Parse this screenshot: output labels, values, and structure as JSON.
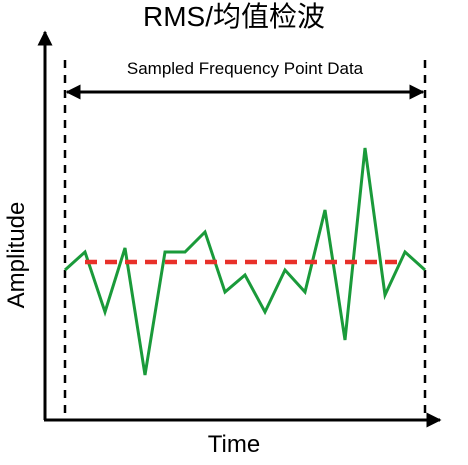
{
  "chart_data": {
    "type": "line",
    "title": "RMS/均值检波",
    "span_label": "Sampled Frequency Point Data",
    "xlabel": "Time",
    "ylabel": "Amplitude",
    "x": [
      0,
      1,
      2,
      3,
      4,
      5,
      6,
      7,
      8,
      9,
      10,
      11,
      12,
      13,
      14,
      15,
      16,
      17,
      18
    ],
    "series": [
      {
        "color": "#1a9a3a",
        "values": [
          150,
          168,
          108,
          172,
          45,
          168,
          168,
          188,
          128,
          145,
          108,
          150,
          128,
          210,
          80,
          272,
          125,
          168,
          150
        ]
      }
    ],
    "rms_level": 158,
    "rms_color": "#e8312a",
    "xlim": [
      -1,
      19
    ],
    "ylim": [
      0,
      380
    ]
  }
}
